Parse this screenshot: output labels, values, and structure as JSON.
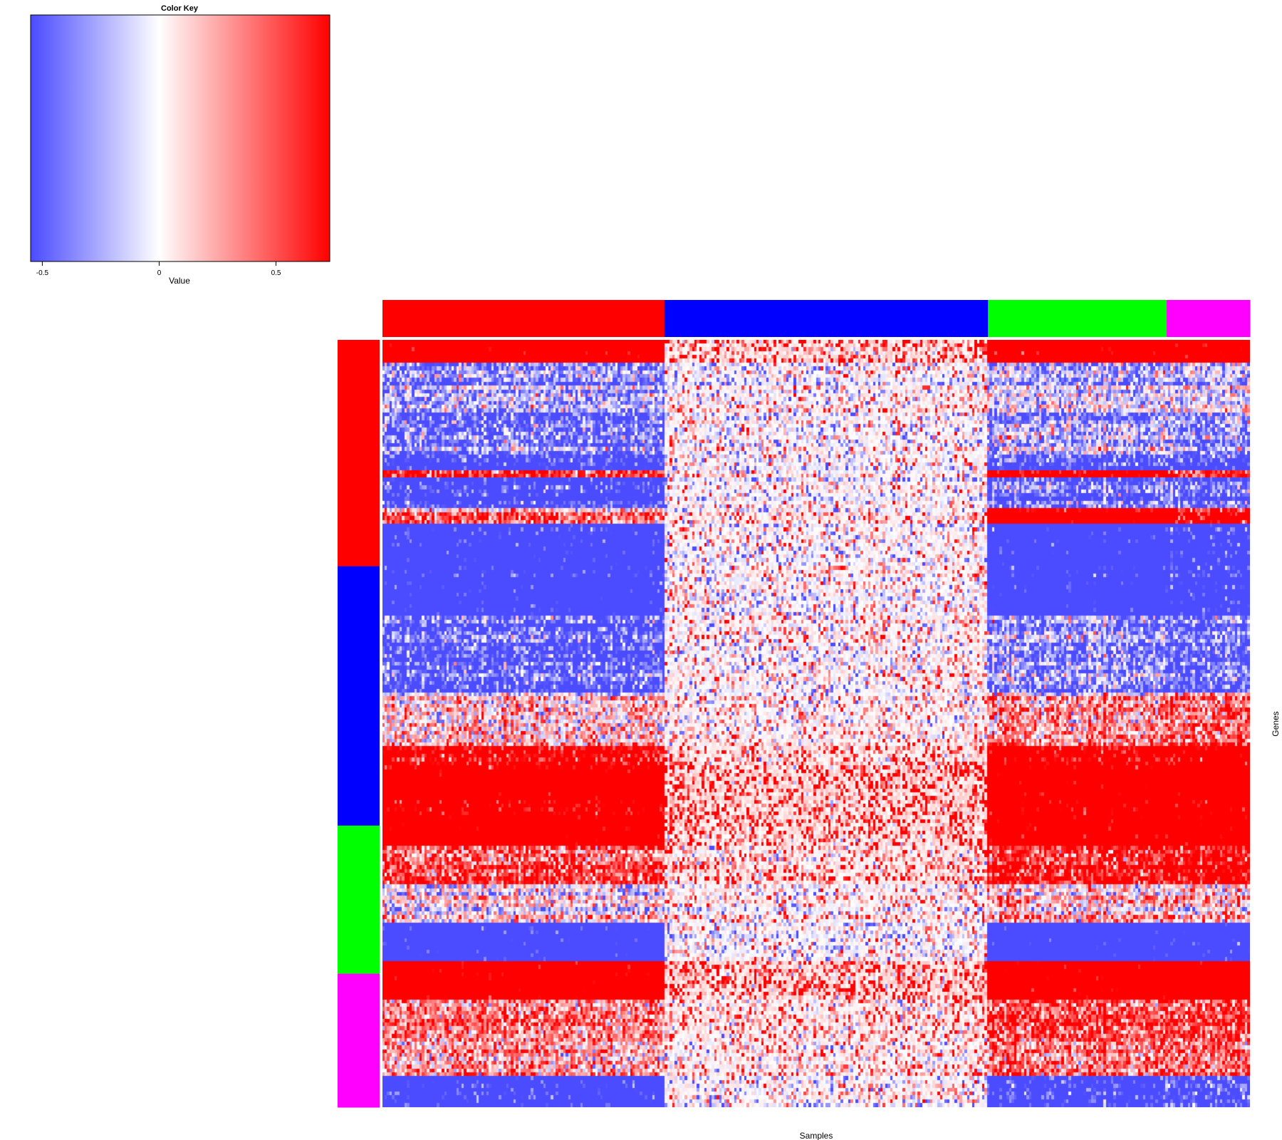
{
  "chart_data": {
    "type": "heatmap",
    "xlabel": "Samples",
    "ylabel": "Genes",
    "color_key": {
      "title": "Color Key",
      "label": "Value",
      "ticks": [
        "-0.5",
        "0",
        "0.5"
      ],
      "tick_values": [
        -0.5,
        0,
        0.5
      ],
      "range": [
        -0.55,
        0.73
      ],
      "low_color": "#4b4bff",
      "mid_color": "#ffffff",
      "high_color": "#ff0000"
    },
    "sample_groups": [
      {
        "color": "#ff0000",
        "share": 0.325
      },
      {
        "color": "#0000ff",
        "share": 0.373
      },
      {
        "color": "#00ff00",
        "share": 0.206
      },
      {
        "color": "#ff00ff",
        "share": 0.096
      }
    ],
    "gene_groups": [
      {
        "color": "#ff0000",
        "share": 0.295
      },
      {
        "color": "#0000ff",
        "share": 0.338
      },
      {
        "color": "#00ff00",
        "share": 0.193
      },
      {
        "color": "#ff00ff",
        "share": 0.174
      }
    ],
    "cell_colors": {
      "up": "#ff0000",
      "down": "#4b4bff",
      "zero": "#ffffff"
    },
    "dimensions": {
      "genes": 200,
      "samples": 350
    },
    "row_block_values": [
      {
        "start": 0.0,
        "end": 0.03,
        "g": [
          0.85,
          0.3,
          0.85,
          0.8
        ]
      },
      {
        "start": 0.03,
        "end": 0.09,
        "g": [
          -0.2,
          0.0,
          -0.1,
          -0.1
        ]
      },
      {
        "start": 0.09,
        "end": 0.11,
        "g": [
          -0.3,
          0.05,
          -0.2,
          -0.1
        ]
      },
      {
        "start": 0.11,
        "end": 0.15,
        "g": [
          -0.25,
          0.0,
          -0.1,
          -0.2
        ]
      },
      {
        "start": 0.15,
        "end": 0.17,
        "g": [
          -0.5,
          0.0,
          -0.4,
          -0.4
        ]
      },
      {
        "start": 0.17,
        "end": 0.18,
        "g": [
          0.4,
          0.1,
          0.7,
          0.4
        ]
      },
      {
        "start": 0.18,
        "end": 0.22,
        "g": [
          -0.5,
          0.0,
          -0.3,
          -0.3
        ]
      },
      {
        "start": 0.22,
        "end": 0.24,
        "g": [
          0.2,
          0.1,
          0.8,
          0.5
        ]
      },
      {
        "start": 0.24,
        "end": 0.29,
        "g": [
          -0.65,
          0.0,
          -0.7,
          -0.6
        ]
      },
      {
        "start": 0.29,
        "end": 0.36,
        "g": [
          -0.7,
          0.0,
          -0.7,
          -0.6
        ]
      },
      {
        "start": 0.36,
        "end": 0.46,
        "g": [
          -0.35,
          0.05,
          -0.2,
          -0.3
        ]
      },
      {
        "start": 0.46,
        "end": 0.53,
        "g": [
          0.1,
          0.1,
          0.2,
          0.3
        ]
      },
      {
        "start": 0.53,
        "end": 0.56,
        "g": [
          0.6,
          0.3,
          0.7,
          0.7
        ]
      },
      {
        "start": 0.56,
        "end": 0.6,
        "g": [
          0.9,
          0.4,
          0.9,
          0.9
        ]
      },
      {
        "start": 0.6,
        "end": 0.62,
        "g": [
          0.6,
          0.3,
          0.7,
          0.7
        ]
      },
      {
        "start": 0.62,
        "end": 0.66,
        "g": [
          0.85,
          0.35,
          0.85,
          0.85
        ]
      },
      {
        "start": 0.66,
        "end": 0.71,
        "g": [
          0.3,
          0.2,
          0.4,
          0.5
        ]
      },
      {
        "start": 0.71,
        "end": 0.76,
        "g": [
          0.0,
          0.05,
          0.1,
          0.1
        ]
      },
      {
        "start": 0.76,
        "end": 0.81,
        "g": [
          -0.7,
          0.0,
          -0.7,
          -0.65
        ]
      },
      {
        "start": 0.81,
        "end": 0.86,
        "g": [
          0.85,
          0.35,
          0.85,
          0.9
        ]
      },
      {
        "start": 0.86,
        "end": 0.96,
        "g": [
          0.2,
          0.15,
          0.3,
          0.3
        ]
      },
      {
        "start": 0.96,
        "end": 1.0,
        "g": [
          -0.6,
          0.0,
          -0.5,
          -0.4
        ]
      }
    ]
  }
}
